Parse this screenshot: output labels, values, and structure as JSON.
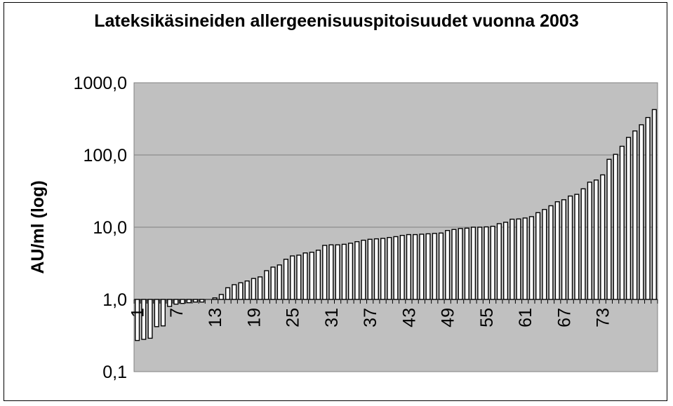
{
  "chart_data": {
    "type": "bar",
    "title": "Lateksikäsineiden allergeenisuuspitoisuudet vuonna 2003",
    "xlabel": "",
    "ylabel": "AU/ml (log)",
    "y_scale": "log",
    "ylim": [
      0.1,
      1000
    ],
    "baseline": 1.0,
    "y_tick_labels": [
      "1000,0",
      "100,0",
      "10,0",
      "1,0",
      "0,1"
    ],
    "x_tick_labels": [
      "1",
      "7",
      "13",
      "19",
      "25",
      "31",
      "37",
      "43",
      "49",
      "55",
      "61",
      "67",
      "73"
    ],
    "grid": true,
    "legend": "none",
    "colors": {
      "plot_background": "#c0c0c0",
      "bar_fill": "#ffffff",
      "bar_edge": "#000000"
    },
    "values": [
      0.27,
      0.28,
      0.29,
      0.42,
      0.43,
      0.8,
      0.86,
      0.88,
      0.9,
      0.92,
      0.92,
      null,
      1.05,
      1.17,
      1.45,
      1.6,
      1.7,
      1.8,
      1.95,
      2.05,
      2.5,
      2.8,
      3.0,
      3.6,
      4.0,
      4.1,
      4.4,
      4.5,
      4.8,
      5.6,
      5.7,
      5.7,
      5.8,
      6.0,
      6.3,
      6.6,
      6.8,
      6.9,
      7.0,
      7.2,
      7.4,
      7.7,
      7.9,
      7.9,
      8.0,
      8.1,
      8.2,
      8.3,
      9.0,
      9.3,
      9.6,
      9.7,
      10.0,
      10.0,
      10.1,
      10.3,
      11.2,
      11.7,
      12.9,
      13.0,
      13.4,
      14.0,
      15.9,
      17.6,
      19.8,
      22.5,
      24.0,
      27.0,
      28.5,
      34.0,
      42.0,
      45.0,
      53.0,
      87.0,
      102.0,
      132.0,
      175.0,
      215.0,
      262.0,
      330.0,
      425.0
    ]
  }
}
